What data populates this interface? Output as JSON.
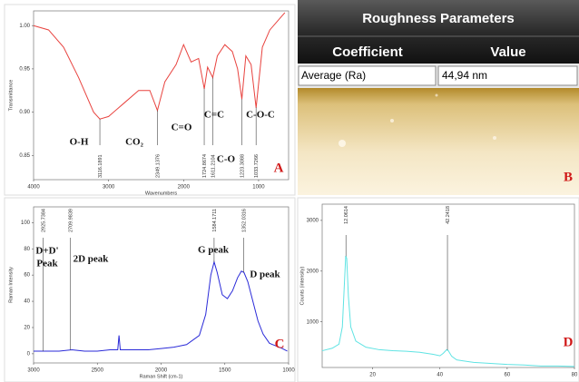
{
  "chart_data": [
    {
      "type": "line",
      "panel_label": "A",
      "x_label": "Wavenumbers",
      "y_label": "Transmittance",
      "xlim": [
        4000,
        600
      ],
      "ylim": [
        0.822,
        1.017
      ],
      "xticks": [
        4000,
        3000,
        2000,
        1000
      ],
      "yticks": [
        0.85,
        {
          "value": 0.9,
          "label": "0.90"
        },
        0.95,
        {
          "value": 1,
          "label": "1.00"
        }
      ],
      "x": [
        4000,
        3800,
        3600,
        3400,
        3200,
        3116,
        3000,
        2800,
        2600,
        2450,
        2349,
        2250,
        2100,
        2000,
        1900,
        1800,
        1724,
        1680,
        1611,
        1550,
        1450,
        1350,
        1280,
        1223,
        1170,
        1100,
        1033,
        950,
        850,
        750,
        650
      ],
      "series": [
        {
          "color": "#e8433f",
          "values": [
            1.0,
            0.995,
            0.975,
            0.94,
            0.9,
            0.892,
            0.895,
            0.91,
            0.925,
            0.925,
            0.902,
            0.935,
            0.955,
            0.978,
            0.958,
            0.962,
            0.927,
            0.952,
            0.94,
            0.965,
            0.978,
            0.97,
            0.95,
            0.915,
            0.965,
            0.955,
            0.905,
            0.975,
            0.995,
            1.005,
            1.015
          ]
        }
      ],
      "peaks": [
        3116.1891,
        2349.1376,
        1724.8674,
        1611.2104,
        1223.3088,
        1033.7266
      ],
      "annotations": [
        "O-H",
        "CO₂",
        "C=O",
        "C=C",
        "C-O",
        "C-O-C"
      ]
    },
    {
      "type": "line",
      "panel_label": "C",
      "x_label": "Raman Shift (cm-1)",
      "y_label": "Raman Intensity",
      "xlim": [
        3000,
        1000
      ],
      "ylim": [
        -7,
        112
      ],
      "xticks": [
        3000,
        2500,
        2000,
        1500,
        1000
      ],
      "yticks": [
        0,
        20,
        40,
        60,
        80,
        100
      ],
      "x": [
        3000,
        2900,
        2800,
        2700,
        2600,
        2500,
        2400,
        2340,
        2330,
        2320,
        2200,
        2100,
        2000,
        1900,
        1800,
        1700,
        1650,
        1610,
        1584,
        1560,
        1520,
        1480,
        1440,
        1400,
        1370,
        1350,
        1320,
        1280,
        1240,
        1200,
        1150,
        1100,
        1050,
        1010
      ],
      "series": [
        {
          "color": "#2a2ad8",
          "values": [
            2,
            2,
            2,
            3,
            2,
            2,
            3,
            3,
            14,
            3,
            3,
            3,
            4,
            5,
            7,
            14,
            30,
            60,
            70,
            62,
            45,
            42,
            48,
            58,
            63,
            62,
            55,
            40,
            25,
            15,
            8,
            6,
            4,
            2
          ]
        }
      ],
      "peaks": [
        2925.7384,
        2709.9839,
        1584.1711,
        1352.0316
      ],
      "annotations": [
        "D+D'",
        "Peak",
        "2D peak",
        "G peak",
        "D peak"
      ]
    },
    {
      "type": "line",
      "panel_label": "D",
      "y_label": "Counts (intensity)",
      "xlim": [
        5,
        80
      ],
      "ylim": [
        100,
        3320
      ],
      "xticks": [
        20,
        40,
        60,
        80
      ],
      "yticks": [
        1000,
        2000,
        3000
      ],
      "x": [
        5,
        8,
        10,
        11,
        11.5,
        12,
        12.3,
        12.8,
        13.5,
        15,
        18,
        22,
        26,
        30,
        34,
        38,
        40,
        41,
        42,
        42.5,
        43.5,
        45,
        50,
        55,
        60,
        65,
        70,
        75,
        80
      ],
      "series": [
        {
          "color": "#5fe3e3",
          "values": [
            430,
            480,
            560,
            900,
            1600,
            2300,
            2250,
            1500,
            900,
            620,
            500,
            450,
            430,
            420,
            400,
            360,
            330,
            380,
            450,
            430,
            320,
            250,
            200,
            180,
            160,
            150,
            130,
            130,
            120
          ]
        }
      ],
      "peaks": [
        12.0614,
        42.2418
      ]
    }
  ],
  "roughness_panel": {
    "title": "Roughness Parameters",
    "columns": [
      "Coefficient",
      "Value"
    ],
    "rows": [
      [
        "Average (Ra)",
        "44,94 nm"
      ]
    ],
    "panel_label": "B"
  }
}
